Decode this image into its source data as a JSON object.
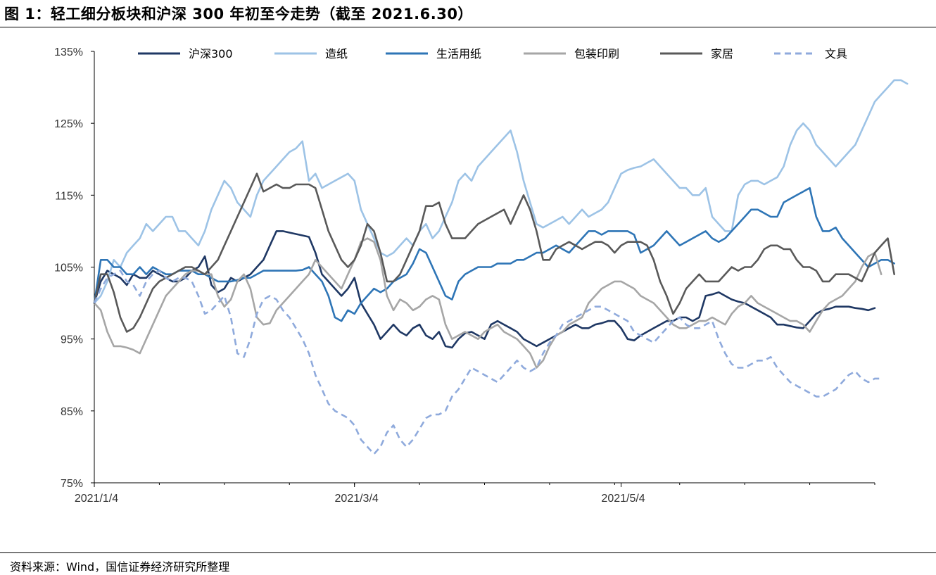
{
  "title": "图 1：轻工细分板块和沪深 300 年初至今走势（截至 2021.6.30）",
  "source": "资料来源：Wind，国信证券经济研究所整理",
  "chart_data": {
    "type": "line",
    "ylim": [
      75,
      135
    ],
    "yticks": [
      "75%",
      "85%",
      "95%",
      "105%",
      "115%",
      "125%",
      "135%"
    ],
    "ytick_values": [
      75,
      85,
      95,
      105,
      115,
      125,
      135
    ],
    "x_range": [
      0,
      120
    ],
    "xticks": [
      {
        "label": "2021/1/4",
        "x": 0
      },
      {
        "label": "2021/3/4",
        "x": 40
      },
      {
        "label": "2021/5/4",
        "x": 81
      }
    ],
    "legend_position": "top",
    "series": [
      {
        "name": "沪深300",
        "color": "#1f3864",
        "dash": false,
        "values": [
          100,
          103,
          104.5,
          104,
          103.5,
          102.5,
          104,
          103.5,
          103.5,
          104.5,
          104,
          103.5,
          103,
          103,
          103.5,
          104.5,
          105,
          106.5,
          102.5,
          101.5,
          102,
          103.5,
          103,
          103.5,
          104,
          105,
          106,
          108,
          110,
          110,
          109.8,
          109.6,
          109.4,
          109.2,
          107,
          104,
          103,
          102,
          101,
          102,
          103.5,
          100,
          98.5,
          97,
          95,
          96,
          97,
          96,
          95.5,
          96.5,
          97,
          95.5,
          95,
          96,
          94,
          93.8,
          95,
          95.8,
          96,
          95.5,
          95,
          97,
          97.5,
          97,
          96.5,
          96,
          95,
          94.5,
          94,
          94.5,
          95,
          95.5,
          96,
          96.5,
          97,
          96.5,
          96.5,
          97,
          97.2,
          97.5,
          97.5,
          96.5,
          95,
          94.8,
          95.5,
          96,
          96.5,
          97,
          97.5,
          97.5,
          98,
          98,
          97.5,
          98,
          101,
          101.2,
          101.5,
          101,
          100.5,
          100.2,
          100,
          99.5,
          99,
          98.5,
          98,
          97,
          97,
          96.8,
          96.6,
          96.5,
          97.5,
          98.5,
          99,
          99.2,
          99.5,
          99.5,
          99.5,
          99.3,
          99.2,
          99,
          99.3
        ]
      },
      {
        "name": "造纸",
        "color": "#9dc3e6",
        "dash": false,
        "values": [
          100,
          101,
          103,
          106,
          105,
          107,
          108,
          109,
          111,
          110,
          111,
          112,
          112,
          110,
          110,
          109,
          108,
          110,
          113,
          115,
          117,
          116,
          114,
          113,
          112,
          115,
          117,
          118,
          119,
          120,
          121,
          121.5,
          122.5,
          117,
          118,
          116,
          116.5,
          117,
          117.5,
          118,
          117,
          113,
          111,
          109,
          107,
          106.5,
          107,
          108,
          109,
          108,
          110,
          111,
          109,
          110,
          112,
          114,
          117,
          118,
          117,
          119,
          120,
          121,
          122,
          123,
          124,
          121,
          117,
          114,
          111,
          110.5,
          111,
          111.5,
          112,
          111,
          112,
          113,
          112,
          112.5,
          113,
          114,
          116,
          118,
          118.5,
          118.8,
          119,
          119.5,
          120,
          119,
          118,
          117,
          116,
          116,
          115,
          115,
          116,
          112,
          111,
          110,
          110,
          115,
          116.5,
          117,
          117,
          116.5,
          117,
          117.5,
          119,
          122,
          124,
          125,
          124,
          122,
          121,
          120,
          119,
          120,
          121,
          122,
          124,
          126,
          128,
          129,
          130,
          131,
          131,
          130.5
        ]
      },
      {
        "name": "生活用纸",
        "color": "#2e75b6",
        "dash": false,
        "values": [
          100,
          106,
          106,
          105,
          105,
          104,
          104,
          105,
          104,
          105,
          104.5,
          104,
          104,
          104.5,
          104.5,
          104.5,
          104,
          104,
          103.5,
          103,
          103,
          103,
          103.2,
          103.5,
          103.5,
          104,
          104.5,
          104.5,
          104.5,
          104.5,
          104.5,
          104.5,
          104.6,
          105,
          104,
          103,
          101,
          98,
          97.5,
          99,
          98.5,
          100,
          101,
          102,
          101.5,
          102,
          103,
          103.5,
          104,
          105.5,
          107.5,
          107,
          105,
          103,
          101,
          100.5,
          103,
          104,
          104.5,
          105,
          105,
          105,
          105.5,
          105.5,
          105.5,
          106,
          106,
          106.5,
          107,
          107,
          107.5,
          108,
          107.5,
          107,
          108,
          109,
          110,
          110,
          109.5,
          110,
          110,
          110,
          110,
          109.5,
          107,
          107.5,
          108,
          109,
          110,
          109,
          108,
          108.5,
          109,
          109.5,
          110,
          109,
          108.5,
          109,
          110,
          111,
          112,
          113,
          113,
          112.5,
          112,
          112,
          114,
          114.5,
          115,
          115.5,
          116,
          112,
          110,
          110,
          110.5,
          109,
          108,
          107,
          106,
          105,
          105.5,
          106,
          106,
          105.5
        ]
      },
      {
        "name": "包装印刷",
        "color": "#a6a6a6",
        "dash": false,
        "values": [
          100,
          99,
          96,
          94,
          94,
          93.8,
          93.5,
          93,
          95,
          97,
          99,
          101,
          102,
          103,
          104,
          104.5,
          104.5,
          104,
          104,
          101,
          99.5,
          100.5,
          103,
          104,
          102,
          98,
          97,
          97.2,
          99,
          100,
          101,
          102,
          103,
          104,
          106,
          105,
          104,
          103,
          102,
          104,
          106,
          108.5,
          109,
          108.5,
          106,
          101,
          99,
          100.5,
          100,
          99,
          99.5,
          100.5,
          101,
          100.5,
          97,
          95,
          95.5,
          96,
          95.5,
          95,
          96,
          96.5,
          97,
          96,
          95.5,
          95,
          94,
          93,
          91,
          92,
          94,
          95.5,
          96,
          97,
          97.5,
          98,
          100,
          101,
          102,
          102.5,
          103,
          103,
          102.5,
          102,
          101,
          100.5,
          100,
          99,
          98,
          97,
          96.5,
          96.5,
          97,
          97.5,
          97.5,
          98,
          97.5,
          97,
          98.5,
          99.5,
          100,
          101,
          100,
          99.5,
          99,
          98.5,
          98,
          97.5,
          97.5,
          97,
          96,
          97.5,
          99,
          100,
          100.5,
          101,
          102,
          103,
          105,
          106.5,
          107,
          104
        ]
      },
      {
        "name": "家居",
        "color": "#595959",
        "dash": false,
        "values": [
          100,
          104,
          104,
          101.5,
          98,
          96,
          96.5,
          98,
          100,
          102,
          103,
          103.5,
          104,
          104.5,
          105,
          105,
          104.5,
          104,
          105,
          106,
          108,
          110,
          112,
          114,
          116,
          118,
          115.5,
          116,
          116.5,
          116,
          116,
          116.5,
          116.5,
          116.5,
          116,
          113,
          110,
          108,
          106,
          105,
          106,
          108,
          111,
          110,
          107,
          103,
          103,
          104,
          106,
          108,
          110,
          113.5,
          113.5,
          114,
          111,
          109,
          109,
          109,
          110,
          111,
          111.5,
          112,
          112.5,
          113,
          111,
          113,
          115,
          113,
          110,
          106,
          106,
          107.5,
          108,
          108.5,
          108,
          107.5,
          108,
          108.5,
          108.5,
          108,
          107,
          108,
          108.5,
          108.5,
          108.5,
          108,
          106,
          103,
          101,
          98.5,
          100,
          102,
          103,
          104,
          103,
          103,
          103,
          104,
          105,
          104.5,
          105,
          105,
          106,
          107.5,
          108,
          108,
          107.5,
          107.5,
          106,
          105,
          105,
          104.5,
          103,
          103,
          104,
          104,
          104,
          103.5,
          103,
          105,
          107,
          108,
          109,
          104
        ]
      },
      {
        "name": "文具",
        "color": "#8faadc",
        "dash": true,
        "values": [
          100,
          102,
          103.5,
          104,
          104.5,
          103,
          102.5,
          101,
          103,
          104,
          104.5,
          103.5,
          103,
          103.5,
          103.5,
          103,
          101,
          98.5,
          99,
          100,
          101,
          98,
          93,
          92.5,
          95,
          98.5,
          100.5,
          101,
          100.5,
          99,
          98,
          96.5,
          95,
          93,
          90,
          88,
          86,
          85,
          84.5,
          84,
          83,
          81,
          80,
          79,
          80,
          82,
          83,
          81,
          80,
          81,
          82.5,
          84,
          84.5,
          84.5,
          85,
          87,
          88,
          89.5,
          91,
          90.5,
          90,
          89.5,
          89,
          90,
          91,
          92,
          91,
          90.5,
          91,
          93,
          94.5,
          95.5,
          97,
          97.5,
          98,
          98.5,
          99,
          99.5,
          99.5,
          99,
          98.5,
          98,
          97.5,
          96,
          95.5,
          95,
          94.5,
          95.5,
          96.5,
          97.5,
          98,
          97,
          96.5,
          96.5,
          97,
          97.5,
          95,
          93,
          91.5,
          91,
          91,
          91.5,
          92,
          92,
          92.5,
          91,
          90,
          89,
          88.5,
          88,
          87.5,
          87,
          87,
          87.5,
          88,
          89,
          90,
          90.5,
          89.5,
          89,
          89.5,
          89.5
        ]
      }
    ]
  }
}
